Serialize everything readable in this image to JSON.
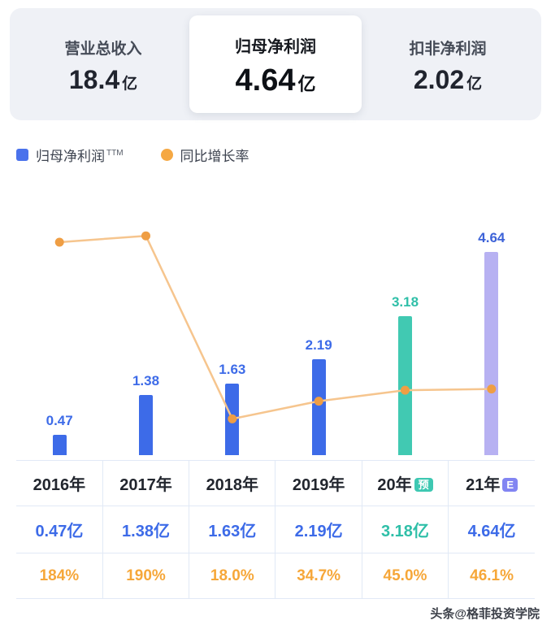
{
  "summary_cards": [
    {
      "key": "total-revenue",
      "label": "营业总收入",
      "value": "18.4",
      "unit": "亿",
      "active": false
    },
    {
      "key": "net-profit",
      "label": "归母净利润",
      "value": "4.64",
      "unit": "亿",
      "active": true
    },
    {
      "key": "deducted-net-profit",
      "label": "扣非净利润",
      "value": "2.02",
      "unit": "亿",
      "active": false
    }
  ],
  "legend": [
    {
      "key": "net-profit-ttm",
      "label": "归母净利润",
      "superscript": "TTM",
      "shape": "square",
      "color": "#4a72ec"
    },
    {
      "key": "yoy-growth",
      "label": "同比增长率",
      "superscript": "",
      "shape": "circle",
      "color": "#f5a843"
    }
  ],
  "chart_data": {
    "type": "bar+line",
    "categories": [
      "2016年",
      "2017年",
      "2018年",
      "2019年",
      "20年预",
      "21年E"
    ],
    "bar_ylim": [
      0,
      5.8
    ],
    "line_ylim": [
      0,
      210
    ],
    "grid": false,
    "legend_position": "top-left",
    "series": [
      {
        "name": "归母净利润TTM",
        "type": "bar",
        "unit": "亿",
        "values": [
          0.47,
          1.38,
          1.63,
          2.19,
          3.18,
          4.64
        ],
        "value_labels": [
          "0.47",
          "1.38",
          "1.63",
          "2.19",
          "3.18",
          "4.64"
        ],
        "bar_colors": [
          "#3d6be8",
          "#3d6be8",
          "#3d6be8",
          "#3d6be8",
          "#41c9b2",
          "#b7b1f2"
        ],
        "label_colors": [
          "#3d6be8",
          "#3d6be8",
          "#3d6be8",
          "#3d6be8",
          "#2fbfa8",
          "#3d63d8"
        ]
      },
      {
        "name": "同比增长率",
        "type": "line",
        "unit": "%",
        "values": [
          184,
          190,
          18.0,
          34.7,
          45.0,
          46.1
        ],
        "color": "#f6c58e",
        "point_color": "#ef9e44"
      }
    ]
  },
  "table": {
    "headers": [
      {
        "text": "2016年",
        "badge": "",
        "badge_color": ""
      },
      {
        "text": "2017年",
        "badge": "",
        "badge_color": ""
      },
      {
        "text": "2018年",
        "badge": "",
        "badge_color": ""
      },
      {
        "text": "2019年",
        "badge": "",
        "badge_color": ""
      },
      {
        "text": "20年",
        "badge": "预",
        "badge_color": "#3ec8b2"
      },
      {
        "text": "21年",
        "badge": "E",
        "badge_color": "#8285f2"
      }
    ],
    "value_row": [
      "0.47亿",
      "1.38亿",
      "1.63亿",
      "2.19亿",
      "3.18亿",
      "4.64亿"
    ],
    "value_colors": [
      "#3d6be8",
      "#3d6be8",
      "#3d6be8",
      "#3d6be8",
      "#2fbfa8",
      "#3d6be8"
    ],
    "growth_row": [
      "184%",
      "190%",
      "18.0%",
      "34.7%",
      "45.0%",
      "46.1%"
    ],
    "growth_color": "#f6a739"
  },
  "watermark": {
    "text": "头条@格菲投资学院"
  }
}
